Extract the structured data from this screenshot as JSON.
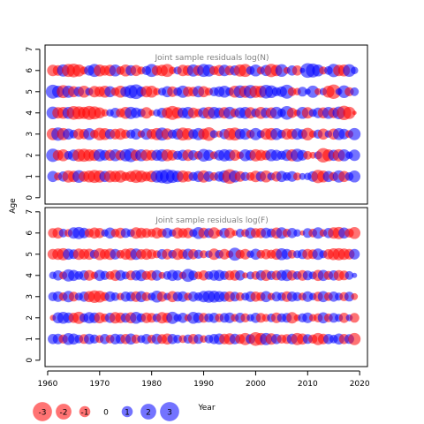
{
  "chart_data": [
    {
      "type": "scatter",
      "title": "Joint sample residuals log(N)",
      "ylabel": "Age",
      "xlabel": "Year",
      "xlim": [
        1959.5,
        2021.5
      ],
      "ylim": [
        -0.3,
        7.2
      ],
      "xticks": [
        1960,
        1970,
        1980,
        1990,
        2000,
        2010,
        2020
      ],
      "yticks": [
        0,
        1,
        2,
        3,
        4,
        5,
        6,
        7
      ],
      "years": [
        1961,
        2019
      ],
      "ages": [
        1,
        2,
        3,
        4,
        5,
        6
      ],
      "encoding": {
        "size": "abs(residual)",
        "color_positive": "#0000ff",
        "color_negative": "#ff0000",
        "opacity": 0.55
      },
      "series": [
        {
          "age": 6,
          "residuals": [
            -1.4,
            -1.2,
            1.6,
            -1.8,
            -2.0,
            -1.6,
            -0.7,
            1.1,
            1.8,
            -1.5,
            -1.1,
            -1.4,
            1.5,
            -0.8,
            -1.5,
            1.2,
            -1.3,
            -0.7,
            0.9,
            1.8,
            -1.1,
            -1.4,
            -1.8,
            -0.6,
            0.7,
            -1.4,
            -1.2,
            1.6,
            -1.2,
            1.8,
            1.6,
            -0.9,
            -1.3,
            1.4,
            -1.0,
            1.1,
            -1.6,
            -1.8,
            0.8,
            1.5,
            -0.7,
            1.3,
            -1.9,
            -1.4,
            1.7,
            -0.5,
            1.1,
            -1.1,
            0.3,
            2.3,
            2.1,
            1.5,
            -0.7,
            0.8,
            1.9,
            -1.4,
            -1.5,
            1.7,
            0.6
          ]
        },
        {
          "age": 5,
          "residuals": [
            2.1,
            1.5,
            -1.8,
            1.6,
            -1.3,
            1.1,
            -1.5,
            0.7,
            -1.4,
            -1.2,
            -1.5,
            1.3,
            -0.8,
            -1.5,
            1.2,
            1.9,
            2.3,
            1.1,
            -1.4,
            -1.5,
            -0.6,
            0.7,
            1.3,
            -1.2,
            0.8,
            1.6,
            -1.1,
            -1.0,
            1.4,
            -1.3,
            -0.7,
            0.9,
            1.2,
            1.5,
            0.8,
            -1.5,
            1.7,
            -1.6,
            1.9,
            -1.6,
            -1.5,
            2.0,
            1.7,
            0.9,
            1.2,
            2.1,
            -0.8,
            -0.6,
            1.0,
            0.4,
            1.6,
            -0.5,
            0.6,
            -1.5,
            -2.2,
            0.5,
            1.7,
            -0.9,
            0.8
          ]
        },
        {
          "age": 4,
          "residuals": [
            1.7,
            -1.4,
            -1.5,
            1.5,
            -2.0,
            -1.8,
            -1.6,
            -2.1,
            -1.8,
            -1.3,
            -0.6,
            0.6,
            1.1,
            -0.9,
            -1.5,
            1.6,
            1.2,
            0.8,
            -1.4,
            -0.4,
            0.6,
            1.1,
            -1.3,
            -2.1,
            -1.4,
            1.2,
            1.5,
            -1.2,
            -0.8,
            1.3,
            -1.6,
            1.5,
            1.2,
            -1.4,
            1.6,
            -0.9,
            1.3,
            1.5,
            -1.4,
            0.9,
            -1.5,
            1.2,
            -1.3,
            1.6,
            0.8,
            2.0,
            -1.1,
            -0.5,
            1.5,
            -1.4,
            0.7,
            1.2,
            -1.3,
            1.5,
            -1.2,
            1.7,
            -2.2,
            -1.6,
            -0.2
          ]
        },
        {
          "age": 3,
          "residuals": [
            -1.6,
            1.9,
            -1.6,
            1.3,
            0.8,
            -1.3,
            -1.1,
            1.5,
            -0.8,
            -1.7,
            -1.5,
            1.1,
            -1.2,
            -1.4,
            -0.9,
            0.9,
            1.3,
            -0.6,
            1.4,
            -1.1,
            -1.6,
            1.8,
            -1.4,
            0.9,
            1.3,
            -1.8,
            -1.5,
            1.0,
            1.6,
            -1.3,
            -2.0,
            0.7,
            -0.5,
            1.1,
            -1.6,
            -1.8,
            1.2,
            1.4,
            -0.8,
            1.6,
            0.7,
            -1.4,
            -1.6,
            1.5,
            0.8,
            -1.3,
            -1.2,
            1.4,
            1.0,
            -1.7,
            -0.6,
            0.9,
            -1.3,
            0.6,
            -1.3,
            1.5,
            1.2,
            -0.7,
            1.6
          ]
        },
        {
          "age": 2,
          "residuals": [
            1.9,
            -1.2,
            -1.5,
            0.8,
            1.4,
            -1.7,
            -1.8,
            -1.5,
            -1.4,
            1.6,
            1.2,
            -1.3,
            1.5,
            -1.1,
            1.6,
            2.0,
            -1.3,
            1.5,
            -1.4,
            -1.2,
            1.3,
            1.6,
            -1.5,
            -1.2,
            0.9,
            1.3,
            -1.4,
            1.1,
            -0.8,
            1.7,
            1.3,
            -0.7,
            1.2,
            1.6,
            1.4,
            -1.3,
            -0.6,
            1.5,
            1.2,
            -1.6,
            -1.3,
            -1.0,
            1.5,
            1.3,
            0.9,
            1.4,
            -1.5,
            1.8,
            1.2,
            -0.8,
            -0.5,
            0.7,
            -2.2,
            -1.5,
            1.3,
            -1.6,
            1.5,
            0.6,
            1.4
          ]
        },
        {
          "age": 1,
          "residuals": [
            1.3,
            -0.7,
            1.1,
            -1.6,
            -1.4,
            1.7,
            -1.2,
            -1.5,
            -1.8,
            -1.6,
            1.3,
            -1.5,
            -1.4,
            -1.6,
            -0.9,
            -1.3,
            -1.8,
            -1.5,
            -1.0,
            -1.4,
            1.6,
            1.9,
            2.3,
            1.8,
            1.4,
            -1.5,
            -1.2,
            0.9,
            1.3,
            -1.6,
            1.2,
            -0.8,
            1.1,
            1.6,
            -2.3,
            1.5,
            -1.2,
            0.9,
            -0.8,
            -1.4,
            1.1,
            -1.5,
            0.7,
            -1.1,
            1.3,
            0.8,
            1.2,
            -0.7,
            0.5,
            0.6,
            1.2,
            -1.9,
            -1.5,
            1.3,
            -0.9,
            1.6,
            -1.3,
            0.8,
            1.5
          ]
        }
      ]
    },
    {
      "type": "scatter",
      "title": "Joint sample residuals log(F)",
      "ylabel": "Age",
      "xlabel": "Year",
      "xlim": [
        1959.5,
        2021.5
      ],
      "ylim": [
        -0.3,
        7.2
      ],
      "xticks": [
        1960,
        1970,
        1980,
        1990,
        2000,
        2010,
        2020
      ],
      "yticks": [
        0,
        1,
        2,
        3,
        4,
        5,
        6,
        7
      ],
      "years": [
        1961,
        2019
      ],
      "ages": [
        1,
        2,
        3,
        4,
        5,
        6
      ],
      "encoding": {
        "size": "abs(residual)",
        "color_positive": "#0000ff",
        "color_negative": "#ff0000",
        "opacity": 0.55
      },
      "series": [
        {
          "age": 6,
          "residuals": [
            -1.0,
            -1.3,
            0.8,
            -0.7,
            1.4,
            1.6,
            1.2,
            -0.9,
            -1.3,
            -1.1,
            0.6,
            1.3,
            -0.8,
            -1.2,
            1.0,
            0.7,
            -1.4,
            -1.2,
            -1.0,
            -0.8,
            -1.3,
            -0.9,
            1.1,
            0.6,
            -1.3,
            -1.0,
            -1.2,
            0.7,
            1.5,
            -1.2,
            1.0,
            -1.4,
            -0.5,
            1.1,
            -1.2,
            -0.4,
            0.8,
            -0.7,
            1.3,
            -1.0,
            -1.1,
            1.2,
            0.9,
            -1.3,
            1.4,
            -0.8,
            1.1,
            0.6,
            -0.3,
            1.0,
            -0.8,
            1.4,
            -0.6,
            1.1,
            -1.4,
            -1.6,
            1.3,
            -0.9,
            -1.5
          ]
        },
        {
          "age": 5,
          "residuals": [
            -1.2,
            -1.4,
            -1.6,
            1.3,
            1.0,
            -1.4,
            -1.2,
            -1.3,
            0.9,
            -1.5,
            -1.1,
            -1.4,
            1.2,
            -0.8,
            -1.3,
            -1.5,
            1.4,
            -1.1,
            -1.3,
            -1.0,
            -0.7,
            1.1,
            -1.2,
            0.8,
            -1.4,
            -1.0,
            1.3,
            -1.1,
            0.9,
            -0.7,
            0.6,
            -1.4,
            0.8,
            -1.2,
            -0.6,
            1.8,
            -0.9,
            -1.2,
            0.6,
            1.3,
            -0.8,
            -1.1,
            -0.9,
            -1.3,
            1.5,
            1.2,
            -0.8,
            0.7,
            1.0,
            -1.2,
            -1.0,
            1.4,
            0.7,
            -1.1,
            -1.5,
            -1.6,
            -1.4,
            -1.2,
            1.2
          ]
        },
        {
          "age": 4,
          "residuals": [
            0.6,
            1.1,
            -0.7,
            1.6,
            1.3,
            0.8,
            1.1,
            -1.2,
            -0.6,
            1.3,
            0.9,
            -0.8,
            -1.3,
            1.2,
            0.7,
            -1.0,
            1.1,
            1.4,
            -0.9,
            -1.1,
            1.2,
            -0.5,
            0.8,
            1.3,
            1.1,
            -0.6,
            1.8,
            1.0,
            -0.7,
            -1.1,
            0.8,
            1.2,
            1.3,
            0.9,
            -1.0,
            -1.2,
            1.1,
            -0.4,
            0.7,
            -0.8,
            1.1,
            -1.3,
            0.9,
            -1.0,
            1.2,
            1.4,
            -1.1,
            0.8,
            -1.2,
            1.0,
            0.7,
            -1.3,
            1.3,
            -0.9,
            1.1,
            -1.2,
            -1.0,
            0.8,
            0.3
          ]
        },
        {
          "age": 3,
          "residuals": [
            0.9,
            1.2,
            -0.8,
            1.4,
            -1.0,
            0.7,
            1.1,
            -1.3,
            -1.7,
            -1.5,
            -0.9,
            1.2,
            0.8,
            -0.6,
            1.1,
            1.0,
            -1.2,
            1.3,
            -0.9,
            0.7,
            1.5,
            -1.1,
            0.6,
            -1.3,
            1.0,
            1.2,
            -0.7,
            1.1,
            0.8,
            1.4,
            1.6,
            1.5,
            1.3,
            1.1,
            -1.2,
            1.0,
            -0.8,
            0.7,
            1.2,
            -1.1,
            -0.9,
            1.3,
            -0.6,
            1.0,
            0.8,
            -1.2,
            1.1,
            0.9,
            -0.7,
            1.2,
            0.6,
            -1.0,
            1.3,
            -0.8,
            1.1,
            0.7,
            -0.9,
            1.0,
            -0.5
          ]
        },
        {
          "age": 2,
          "residuals": [
            -0.4,
            1.3,
            1.5,
            1.2,
            -1.1,
            -1.6,
            0.9,
            1.4,
            1.2,
            -1.3,
            -0.8,
            1.1,
            -1.4,
            -1.2,
            1.0,
            -1.3,
            1.5,
            0.9,
            -1.2,
            -1.0,
            0.8,
            -1.4,
            -1.1,
            1.6,
            0.7,
            1.1,
            -0.6,
            1.5,
            1.2,
            -1.0,
            0.9,
            1.1,
            -0.8,
            1.0,
            1.2,
            -0.7,
            1.1,
            -0.9,
            0.6,
            1.1,
            -1.0,
            -0.7,
            0.8,
            -1.2,
            0.9,
            1.0,
            -1.4,
            -0.5,
            0.9,
            1.2,
            -0.6,
            -0.9,
            1.3,
            -0.8,
            1.0,
            0.7,
            -1.1,
            0.5,
            -1.0
          ]
        },
        {
          "age": 1,
          "residuals": [
            1.1,
            1.2,
            -0.9,
            1.5,
            1.3,
            0.8,
            -1.0,
            1.2,
            0.9,
            -0.7,
            1.1,
            -0.8,
            1.2,
            1.0,
            -1.1,
            1.3,
            -0.9,
            0.7,
            1.1,
            -0.8,
            1.2,
            -1.0,
            -1.3,
            1.1,
            0.8,
            -0.7,
            0.9,
            -1.1,
            1.0,
            -0.6,
            0.8,
            1.1,
            1.3,
            -1.2,
            -1.4,
            1.2,
            -1.0,
            -1.6,
            1.0,
            -2.0,
            -1.6,
            1.6,
            -1.4,
            1.1,
            -0.9,
            -1.0,
            1.2,
            -1.6,
            -1.3,
            1.0,
            -0.9,
            -1.6,
            -1.2,
            1.1,
            0.8,
            1.3,
            -1.1,
            1.0,
            -1.6
          ]
        }
      ]
    }
  ],
  "legend": {
    "items": [
      {
        "label": "-3",
        "value": -3
      },
      {
        "label": "-2",
        "value": -2
      },
      {
        "label": "-1",
        "value": -1
      },
      {
        "label": "0",
        "value": 0
      },
      {
        "label": "1",
        "value": 1
      },
      {
        "label": "2",
        "value": 2
      },
      {
        "label": "3",
        "value": 3
      }
    ]
  }
}
